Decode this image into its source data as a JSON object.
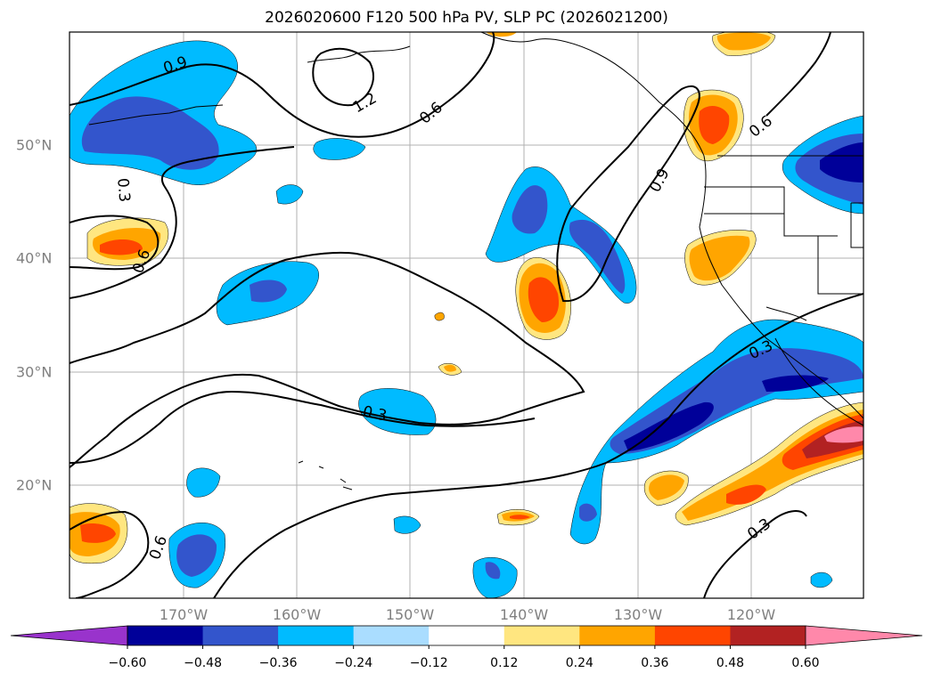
{
  "title": "2026020600 F120 500 hPa PV, SLP PC (2026021200)",
  "map": {
    "lon_labels": [
      "170°W",
      "160°W",
      "150°W",
      "140°W",
      "130°W",
      "120°W"
    ],
    "lat_labels": [
      "50°N",
      "40°N",
      "30°N",
      "20°N"
    ],
    "contour_labels": [
      "0.9",
      "1.2",
      "0.6",
      "0.3",
      "0.6",
      "0.9",
      "0.6",
      "0.3",
      "0.6",
      "0.3",
      "0.3"
    ]
  },
  "colorbar": {
    "ticks": [
      "−0.60",
      "−0.48",
      "−0.36",
      "−0.24",
      "−0.12",
      "0.12",
      "0.24",
      "0.36",
      "0.48",
      "0.60"
    ],
    "colors": [
      "#9933cc",
      "#000099",
      "#3355cc",
      "#00bbff",
      "#aaddff",
      "#ffffff",
      "#ffe680",
      "#ffa500",
      "#ff4500",
      "#b22222",
      "#ff88aa"
    ]
  }
}
